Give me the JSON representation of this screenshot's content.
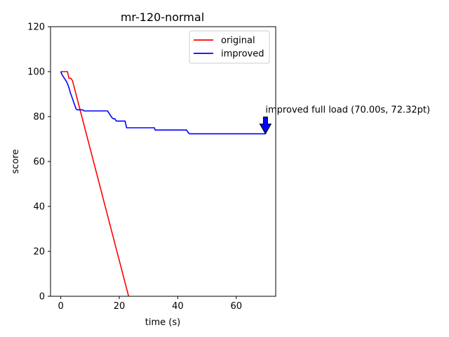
{
  "chart_data": {
    "type": "line",
    "title": "mr-120-normal",
    "xlabel": "time (s)",
    "ylabel": "score",
    "xlim": [
      -3.5,
      73.5
    ],
    "ylim": [
      0,
      120
    ],
    "xticks": [
      0,
      20,
      40,
      60
    ],
    "yticks": [
      0,
      20,
      40,
      60,
      80,
      100,
      120
    ],
    "grid": false,
    "legend_position": "top-right",
    "series": [
      {
        "name": "original",
        "color": "#ff0000",
        "x": [
          0,
          2.3,
          2.8,
          3.5,
          4.0,
          23.2
        ],
        "y": [
          100,
          100,
          97,
          97,
          96,
          0
        ]
      },
      {
        "name": "improved",
        "color": "#0000ff",
        "x": [
          0,
          0.5,
          1.0,
          1.5,
          2.0,
          2.5,
          3.0,
          3.3,
          3.6,
          4.0,
          4.4,
          4.8,
          5.2,
          5.6,
          6.0,
          7.0,
          7.5,
          8.0,
          9.0,
          12.0,
          16.0,
          16.5,
          17.0,
          17.5,
          18.0,
          18.5,
          19.0,
          20.0,
          22.0,
          22.5,
          32.0,
          32.3,
          43.0,
          43.5,
          44.0,
          70.0
        ],
        "y": [
          100,
          98.5,
          97.5,
          96.5,
          95.5,
          94,
          92,
          90.5,
          89.5,
          88,
          86.5,
          85,
          83.5,
          83,
          83,
          83,
          83,
          82.5,
          82.5,
          82.5,
          82.5,
          81.5,
          80.5,
          79.5,
          79,
          79,
          78,
          78,
          78,
          75,
          75,
          74,
          74,
          73,
          72.32,
          72.32
        ]
      }
    ],
    "annotation": {
      "text": "improved full load (70.00s, 72.32pt)",
      "x": 70.0,
      "y": 72.32,
      "color": "#0000ff"
    }
  }
}
